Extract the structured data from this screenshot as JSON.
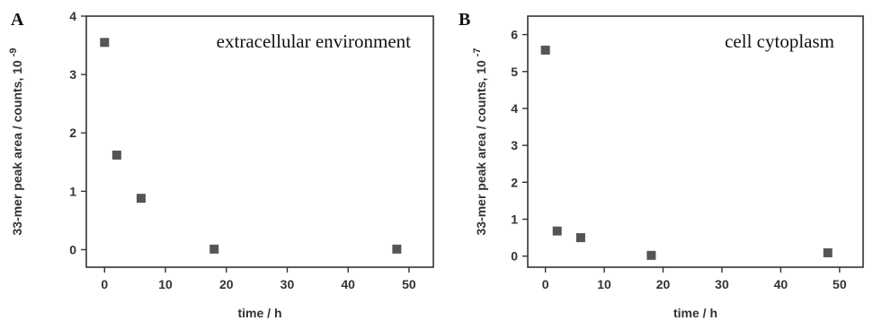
{
  "chart_data": [
    {
      "type": "scatter",
      "panel_label": "A",
      "annotation": "extracellular environment",
      "xlabel": "time / h",
      "ylabel": "33-mer peak area / counts, 10",
      "ylabel_exponent": "-9",
      "xlim": [
        -3,
        54
      ],
      "ylim": [
        -0.3,
        4
      ],
      "xticks": [
        0,
        10,
        20,
        30,
        40,
        50
      ],
      "yticks": [
        0,
        1,
        2,
        3,
        4
      ],
      "grid": false,
      "marker_color": "#555555",
      "points": [
        {
          "x": 0,
          "y": 3.55
        },
        {
          "x": 2,
          "y": 1.62
        },
        {
          "x": 6,
          "y": 0.88
        },
        {
          "x": 18,
          "y": 0.01
        },
        {
          "x": 48,
          "y": 0.01
        }
      ]
    },
    {
      "type": "scatter",
      "panel_label": "B",
      "annotation": "cell cytoplasm",
      "xlabel": "time / h",
      "ylabel": "33-mer peak area / counts, 10",
      "ylabel_exponent": "-7",
      "xlim": [
        -3,
        54
      ],
      "ylim": [
        -0.3,
        6.5
      ],
      "xticks": [
        0,
        10,
        20,
        30,
        40,
        50
      ],
      "yticks": [
        0,
        1,
        2,
        3,
        4,
        5,
        6
      ],
      "grid": false,
      "marker_color": "#555555",
      "points": [
        {
          "x": 0,
          "y": 5.58
        },
        {
          "x": 2,
          "y": 0.68
        },
        {
          "x": 6,
          "y": 0.5
        },
        {
          "x": 18,
          "y": 0.02
        },
        {
          "x": 48,
          "y": 0.09
        }
      ]
    }
  ]
}
